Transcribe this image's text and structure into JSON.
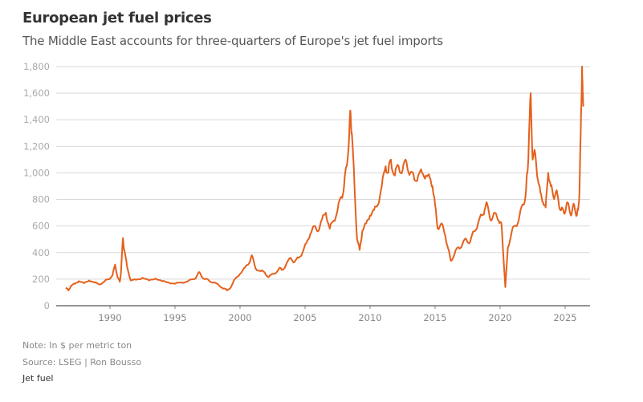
{
  "chart_data": {
    "type": "line",
    "title": "European jet fuel prices",
    "subtitle": "The Middle East accounts for three-quarters of Europe's jet fuel imports",
    "xlabel": "",
    "ylabel": "",
    "ylim": [
      0,
      1800
    ],
    "xlim": [
      1986.3,
      2026.9
    ],
    "yticks": [
      0,
      200,
      400,
      600,
      800,
      1000,
      1200,
      1400,
      1600,
      1800
    ],
    "ytick_labels": [
      "0",
      "200",
      "400",
      "600",
      "800",
      "1,000",
      "1,200",
      "1,400",
      "1,600",
      "1,800"
    ],
    "xticks": [
      1990,
      1995,
      2000,
      2005,
      2010,
      2015,
      2020,
      2025
    ],
    "xtick_labels": [
      "1990",
      "1995",
      "2000",
      "2005",
      "2010",
      "2015",
      "2020",
      "2025"
    ],
    "grid": true,
    "color": "#e5601c",
    "series": [
      {
        "name": "Jet fuel",
        "x": [
          1986.6,
          1986.8,
          1987.0,
          1987.3,
          1987.6,
          1988.0,
          1988.4,
          1988.8,
          1989.2,
          1989.6,
          1989.9,
          1990.2,
          1990.4,
          1990.6,
          1990.75,
          1990.85,
          1991.0,
          1991.1,
          1991.3,
          1991.6,
          1992.0,
          1992.5,
          1993.0,
          1993.5,
          1994.0,
          1994.5,
          1995.0,
          1995.5,
          1996.0,
          1996.5,
          1996.8,
          1997.0,
          1997.3,
          1997.6,
          1998.0,
          1998.4,
          1998.8,
          1999.0,
          1999.3,
          1999.6,
          2000.0,
          2000.4,
          2000.7,
          2000.9,
          2001.2,
          2001.6,
          2001.9,
          2002.2,
          2002.6,
          2003.0,
          2003.2,
          2003.5,
          2003.9,
          2004.2,
          2004.5,
          2004.8,
          2005.1,
          2005.4,
          2005.7,
          2006.0,
          2006.3,
          2006.6,
          2006.9,
          2007.2,
          2007.5,
          2007.8,
          2008.0,
          2008.2,
          2008.4,
          2008.5,
          2008.6,
          2008.8,
          2009.0,
          2009.2,
          2009.4,
          2009.7,
          2010.0,
          2010.3,
          2010.6,
          2010.9,
          2011.2,
          2011.4,
          2011.6,
          2011.9,
          2012.2,
          2012.5,
          2012.8,
          2013.1,
          2013.4,
          2013.7,
          2014.0,
          2014.3,
          2014.6,
          2014.8,
          2015.0,
          2015.2,
          2015.5,
          2015.8,
          2016.0,
          2016.2,
          2016.5,
          2016.8,
          2017.1,
          2017.4,
          2017.7,
          2018.0,
          2018.3,
          2018.6,
          2018.8,
          2019.0,
          2019.3,
          2019.6,
          2019.9,
          2020.1,
          2020.25,
          2020.4,
          2020.6,
          2020.9,
          2021.2,
          2021.5,
          2021.8,
          2022.0,
          2022.1,
          2022.2,
          2022.35,
          2022.5,
          2022.7,
          2022.9,
          2023.1,
          2023.3,
          2023.5,
          2023.7,
          2023.9,
          2024.1,
          2024.3,
          2024.5,
          2024.7,
          2024.9,
          2025.1,
          2025.3,
          2025.5,
          2025.7,
          2025.9,
          2026.0,
          2026.1,
          2026.2,
          2026.3,
          2026.35,
          2026.4
        ],
        "values": [
          135,
          115,
          150,
          165,
          185,
          170,
          190,
          175,
          160,
          185,
          200,
          230,
          310,
          210,
          180,
          260,
          510,
          420,
          300,
          190,
          195,
          210,
          190,
          205,
          185,
          175,
          165,
          175,
          185,
          200,
          250,
          230,
          200,
          190,
          175,
          150,
          130,
          115,
          140,
          200,
          240,
          290,
          320,
          380,
          280,
          260,
          250,
          215,
          240,
          280,
          270,
          300,
          360,
          330,
          360,
          400,
          470,
          540,
          600,
          560,
          650,
          700,
          580,
          640,
          720,
          820,
          900,
          1050,
          1300,
          1460,
          1300,
          900,
          500,
          420,
          560,
          620,
          680,
          720,
          760,
          900,
          1050,
          1000,
          1100,
          980,
          1050,
          1020,
          1080,
          1000,
          950,
          980,
          1000,
          980,
          960,
          900,
          760,
          580,
          620,
          520,
          430,
          340,
          390,
          440,
          460,
          500,
          480,
          560,
          620,
          680,
          720,
          770,
          640,
          700,
          640,
          620,
          380,
          140,
          440,
          560,
          600,
          680,
          760,
          880,
          1000,
          1200,
          1600,
          1100,
          1150,
          950,
          850,
          780,
          740,
          1000,
          900,
          820,
          860,
          780,
          720,
          700,
          760,
          740,
          690,
          760,
          680,
          720,
          850,
          1300,
          1800,
          1600,
          1500
        ]
      }
    ]
  },
  "notes": {
    "note": "Note: In $ per metric ton",
    "source": "Source: LSEG | Ron Bousso"
  },
  "legend": {
    "label": "Jet fuel"
  }
}
